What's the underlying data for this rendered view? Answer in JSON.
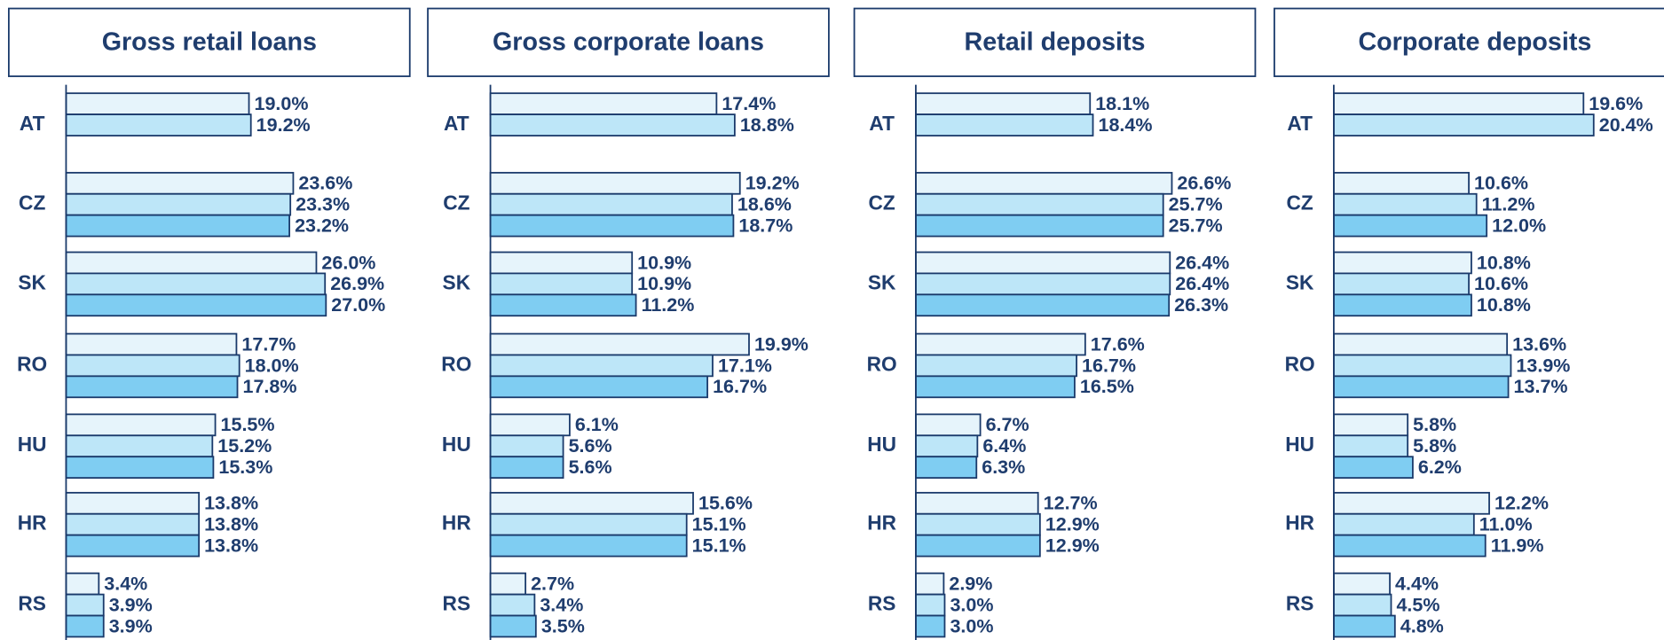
{
  "chart_data": [
    {
      "type": "bar",
      "orientation": "horizontal",
      "title": "Gross retail loans",
      "categories": [
        "AT",
        "CZ",
        "SK",
        "RO",
        "HU",
        "HR",
        "RS"
      ],
      "xlim": [
        0,
        27
      ],
      "series": [
        {
          "color": "#e6f4fb",
          "values": [
            19.0,
            23.6,
            26.0,
            17.7,
            15.5,
            13.8,
            3.4
          ],
          "value_labels": [
            "19.0%",
            "23.6%",
            "26.0%",
            "17.7%",
            "15.5%",
            "13.8%",
            "3.4%"
          ]
        },
        {
          "color": "#bde6f8",
          "values": [
            19.2,
            23.3,
            26.9,
            18.0,
            15.2,
            13.8,
            3.9
          ],
          "value_labels": [
            "19.2%",
            "23.3%",
            "26.9%",
            "18.0%",
            "15.2%",
            "13.8%",
            "3.9%"
          ]
        },
        {
          "color": "#7fcdf2",
          "values": [
            null,
            23.2,
            27.0,
            17.8,
            15.3,
            13.8,
            3.9
          ],
          "value_labels": [
            null,
            "23.2%",
            "27.0%",
            "17.8%",
            "15.3%",
            "13.8%",
            "3.9%"
          ]
        }
      ]
    },
    {
      "type": "bar",
      "orientation": "horizontal",
      "title": "Gross corporate loans",
      "categories": [
        "AT",
        "CZ",
        "SK",
        "RO",
        "HU",
        "HR",
        "RS"
      ],
      "xlim": [
        0,
        20
      ],
      "series": [
        {
          "color": "#e6f4fb",
          "values": [
            17.4,
            19.2,
            10.9,
            19.9,
            6.1,
            15.6,
            2.7
          ],
          "value_labels": [
            "17.4%",
            "19.2%",
            "10.9%",
            "19.9%",
            "6.1%",
            "15.6%",
            "2.7%"
          ]
        },
        {
          "color": "#bde6f8",
          "values": [
            18.8,
            18.6,
            10.9,
            17.1,
            5.6,
            15.1,
            3.4
          ],
          "value_labels": [
            "18.8%",
            "18.6%",
            "10.9%",
            "17.1%",
            "5.6%",
            "15.1%",
            "3.4%"
          ]
        },
        {
          "color": "#7fcdf2",
          "values": [
            null,
            18.7,
            11.2,
            16.7,
            5.6,
            15.1,
            3.5
          ],
          "value_labels": [
            null,
            "18.7%",
            "11.2%",
            "16.7%",
            "5.6%",
            "15.1%",
            "3.5%"
          ]
        }
      ]
    },
    {
      "type": "bar",
      "orientation": "horizontal",
      "title": "Retail deposits",
      "categories": [
        "AT",
        "CZ",
        "SK",
        "RO",
        "HU",
        "HR",
        "RS"
      ],
      "xlim": [
        0,
        27
      ],
      "series": [
        {
          "color": "#e6f4fb",
          "values": [
            18.1,
            26.6,
            26.4,
            17.6,
            6.7,
            12.7,
            2.9
          ],
          "value_labels": [
            "18.1%",
            "26.6%",
            "26.4%",
            "17.6%",
            "6.7%",
            "12.7%",
            "2.9%"
          ]
        },
        {
          "color": "#bde6f8",
          "values": [
            18.4,
            25.7,
            26.4,
            16.7,
            6.4,
            12.9,
            3.0
          ],
          "value_labels": [
            "18.4%",
            "25.7%",
            "26.4%",
            "16.7%",
            "6.4%",
            "12.9%",
            "3.0%"
          ]
        },
        {
          "color": "#7fcdf2",
          "values": [
            null,
            25.7,
            26.3,
            16.5,
            6.3,
            12.9,
            3.0
          ],
          "value_labels": [
            null,
            "25.7%",
            "26.3%",
            "16.5%",
            "6.3%",
            "12.9%",
            "3.0%"
          ]
        }
      ]
    },
    {
      "type": "bar",
      "orientation": "horizontal",
      "title": "Corporate deposits",
      "categories": [
        "AT",
        "CZ",
        "SK",
        "RO",
        "HU",
        "HR",
        "RS"
      ],
      "xlim": [
        0,
        20.4
      ],
      "series": [
        {
          "color": "#e6f4fb",
          "values": [
            19.6,
            10.6,
            10.8,
            13.6,
            5.8,
            12.2,
            4.4
          ],
          "value_labels": [
            "19.6%",
            "10.6%",
            "10.8%",
            "13.6%",
            "5.8%",
            "12.2%",
            "4.4%"
          ]
        },
        {
          "color": "#bde6f8",
          "values": [
            20.4,
            11.2,
            10.6,
            13.9,
            5.8,
            11.0,
            4.5
          ],
          "value_labels": [
            "20.4%",
            "11.2%",
            "10.6%",
            "13.9%",
            "5.8%",
            "11.0%",
            "4.5%"
          ]
        },
        {
          "color": "#7fcdf2",
          "values": [
            null,
            12.0,
            10.8,
            13.7,
            6.2,
            11.9,
            4.8
          ],
          "value_labels": [
            null,
            "12.0%",
            "10.8%",
            "13.7%",
            "6.2%",
            "11.9%",
            "4.8%"
          ]
        }
      ]
    }
  ]
}
